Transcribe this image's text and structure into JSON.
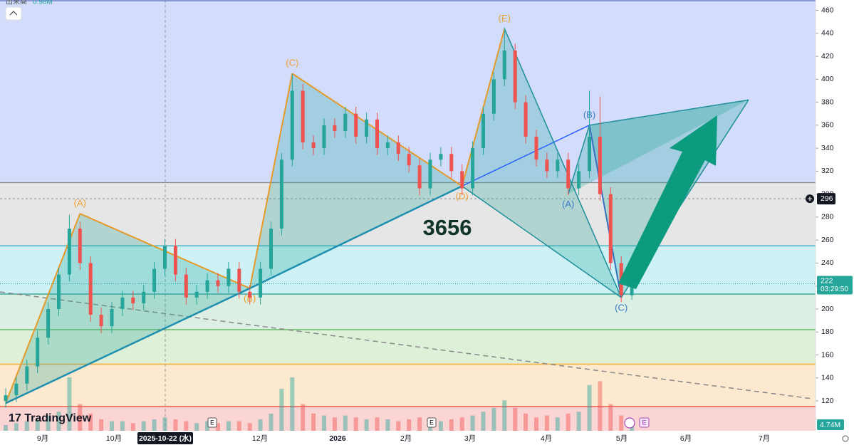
{
  "chart_data": {
    "type": "candlestick",
    "symbol_code": "3656",
    "volume_title": "出来高",
    "volume_top": "0.98M",
    "brand": "TradingView",
    "ylim": [
      94,
      469
    ],
    "yticks": [
      120,
      140,
      160,
      180,
      200,
      220,
      240,
      260,
      280,
      300,
      320,
      340,
      360,
      380,
      400,
      420,
      440,
      460
    ],
    "x_labels": [
      "9月",
      "10月",
      "2025-10-22 (水)",
      "12月",
      "2026",
      "2月",
      "3月",
      "4月",
      "5月",
      "6月",
      "7月"
    ],
    "event_marker": "E",
    "crosshair_price": 296,
    "last_price": 222,
    "countdown": "03:29:50",
    "last_volume_label": "4.74M",
    "open": [
      120,
      125,
      135,
      150,
      175,
      200,
      230,
      270,
      240,
      195,
      185,
      200,
      210,
      205,
      215,
      235,
      255,
      230,
      210,
      215,
      225,
      220,
      235,
      215,
      210,
      235,
      270,
      330,
      390,
      345,
      340,
      360,
      355,
      370,
      350,
      365,
      340,
      345,
      335,
      325,
      305,
      330,
      335,
      320,
      305,
      340,
      370,
      400,
      425,
      380,
      350,
      330,
      320,
      330,
      305,
      320,
      350,
      300,
      240,
      212
    ],
    "high": [
      131,
      141,
      156,
      181,
      206,
      236,
      282,
      276,
      246,
      201,
      206,
      216,
      216,
      221,
      241,
      261,
      261,
      236,
      221,
      231,
      231,
      241,
      241,
      221,
      241,
      276,
      336,
      405,
      396,
      351,
      366,
      366,
      376,
      376,
      371,
      371,
      351,
      351,
      341,
      331,
      336,
      341,
      341,
      326,
      346,
      376,
      406,
      445,
      431,
      386,
      356,
      336,
      336,
      336,
      326,
      390,
      385,
      306,
      246,
      228
    ],
    "low": [
      114,
      119,
      129,
      144,
      169,
      194,
      224,
      234,
      189,
      179,
      179,
      194,
      199,
      199,
      209,
      229,
      224,
      204,
      204,
      209,
      214,
      214,
      209,
      204,
      204,
      229,
      264,
      324,
      339,
      334,
      334,
      349,
      349,
      344,
      344,
      334,
      334,
      329,
      319,
      299,
      299,
      324,
      314,
      299,
      299,
      334,
      364,
      394,
      374,
      344,
      324,
      314,
      314,
      299,
      299,
      314,
      294,
      234,
      206,
      208
    ],
    "close": [
      125,
      135,
      150,
      175,
      200,
      230,
      270,
      240,
      195,
      185,
      200,
      210,
      205,
      215,
      235,
      255,
      230,
      210,
      215,
      225,
      220,
      235,
      215,
      210,
      235,
      270,
      330,
      390,
      345,
      340,
      360,
      355,
      370,
      350,
      365,
      340,
      345,
      335,
      325,
      305,
      330,
      335,
      320,
      305,
      340,
      370,
      400,
      425,
      380,
      350,
      330,
      320,
      330,
      305,
      320,
      350,
      300,
      240,
      212,
      222
    ],
    "volume": [
      3,
      4,
      5,
      6,
      8,
      10,
      28,
      14,
      9,
      6,
      5,
      5,
      4,
      5,
      6,
      7,
      6,
      5,
      4,
      5,
      4,
      5,
      5,
      4,
      6,
      9,
      22,
      28,
      14,
      9,
      8,
      7,
      8,
      7,
      6,
      7,
      6,
      5,
      6,
      7,
      6,
      5,
      6,
      7,
      8,
      10,
      12,
      16,
      12,
      9,
      7,
      8,
      7,
      9,
      10,
      24,
      26,
      14,
      8,
      4.74
    ],
    "pattern": [
      {
        "label": "",
        "bar": 0,
        "price": 118
      },
      {
        "label": "(A)",
        "bar": 7,
        "price": 283
      },
      {
        "label": "(B)",
        "bar": 23,
        "price": 218
      },
      {
        "label": "(C)",
        "bar": 27,
        "price": 405
      },
      {
        "label": "(D)",
        "bar": 43,
        "price": 307
      },
      {
        "label": "(E)",
        "bar": 47,
        "price": 444
      },
      {
        "label": "(A)",
        "bar": 53,
        "price": 300
      },
      {
        "label": "(B)",
        "bar": 55,
        "price": 360
      },
      {
        "label": "(C)",
        "bar": 58,
        "price": 210
      },
      {
        "label": "",
        "bar": 70,
        "price": 382
      }
    ],
    "levels": [
      {
        "price": 310,
        "color": "#888888"
      },
      {
        "price": 255,
        "color": "#26a6b8"
      },
      {
        "price": 213,
        "color": "#1e9a8a"
      },
      {
        "price": 182,
        "color": "#4caf50"
      },
      {
        "price": 152,
        "color": "#f5a623"
      },
      {
        "price": 115,
        "color": "#e53935"
      }
    ],
    "up_color": "#26a69a",
    "down_color": "#ef5350"
  }
}
